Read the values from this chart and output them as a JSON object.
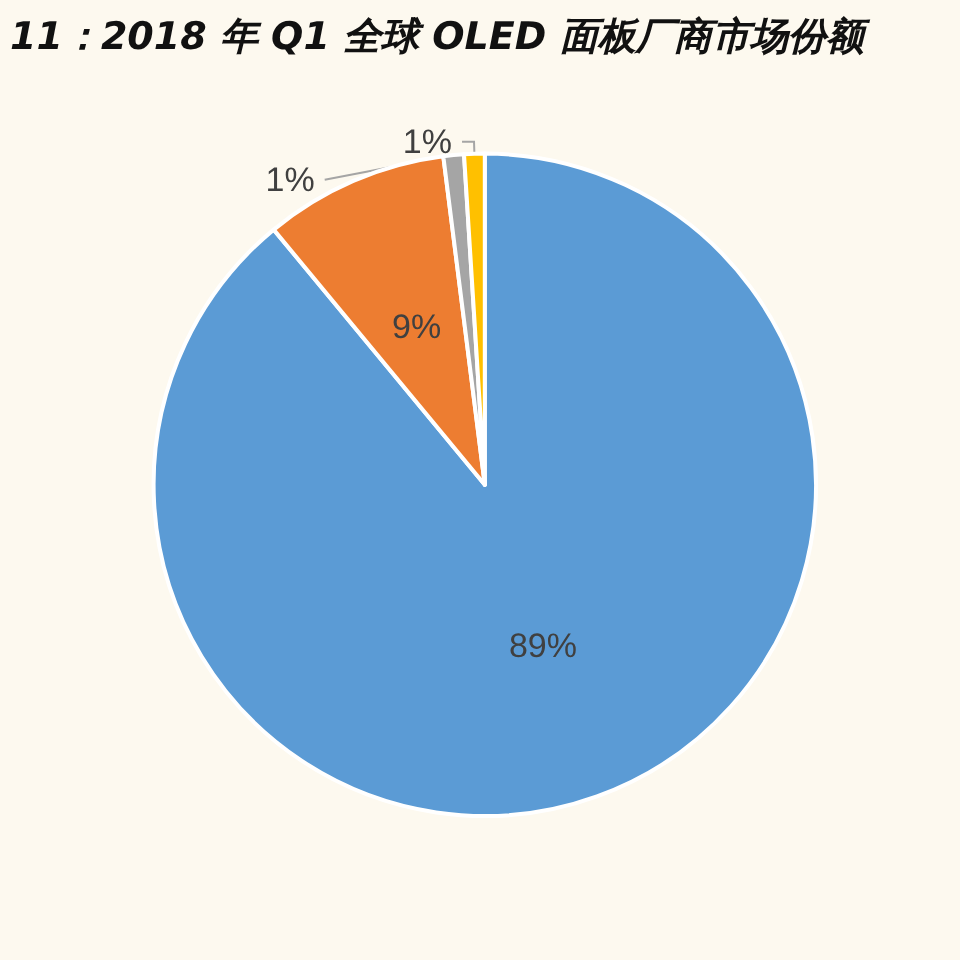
{
  "chart_data": {
    "type": "pie",
    "title": "11：2018 年 Q1 全球 OLED 面板厂商市场份额",
    "categories": [
      null,
      null,
      null,
      null
    ],
    "values": [
      89,
      9,
      1,
      1
    ],
    "colors": [
      "#5b9bd5",
      "#ed7d31",
      "#a5a5a5",
      "#ffc000"
    ],
    "value_labels": [
      "89%",
      "9%",
      "1%",
      "1%"
    ]
  }
}
